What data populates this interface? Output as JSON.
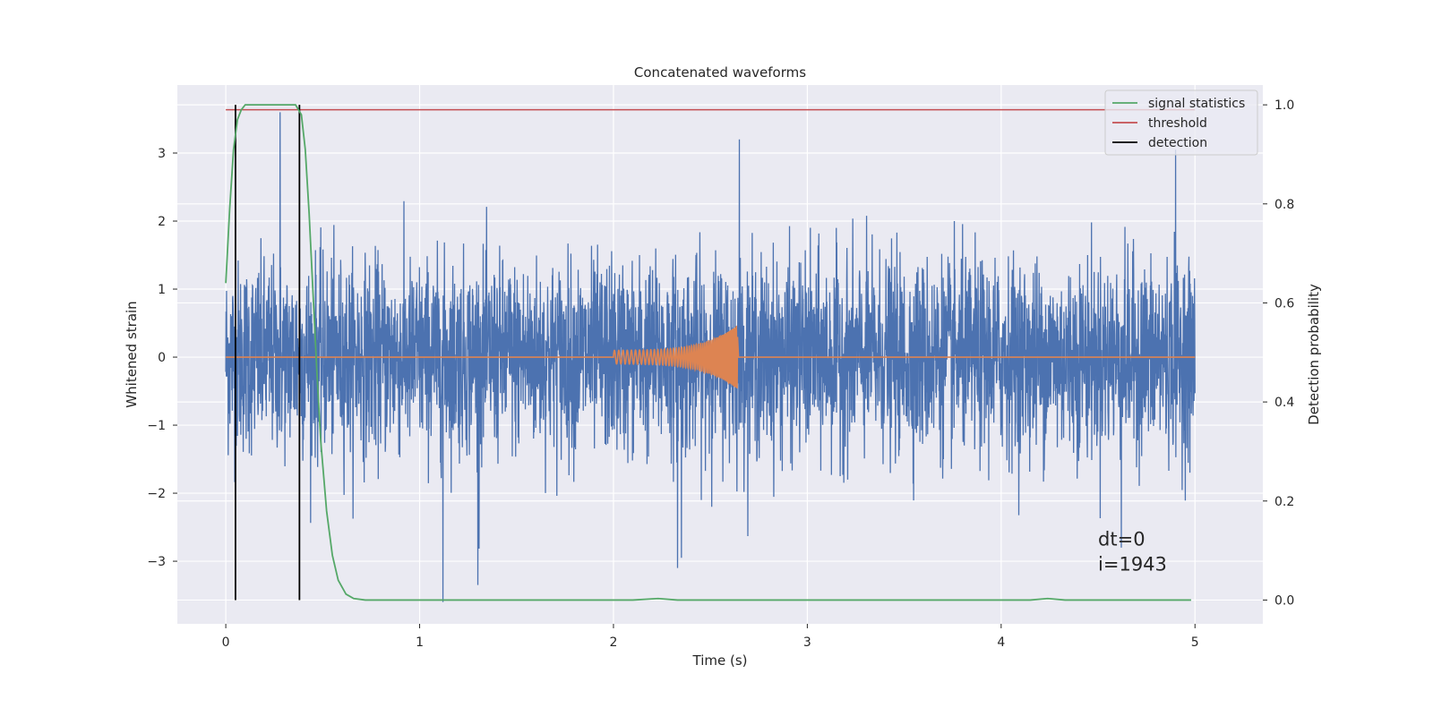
{
  "chart_data": {
    "type": "line",
    "title": "Concatenated waveforms",
    "xlabel": "Time (s)",
    "ylabel_left": "Whitened strain",
    "ylabel_right": "Detection probability",
    "xlim": [
      -0.25,
      5.35
    ],
    "ylim_left": [
      -3.92,
      4.0
    ],
    "ylim_right": [
      -0.048,
      1.04
    ],
    "x_ticks": [
      0,
      1,
      2,
      3,
      4,
      5
    ],
    "x_tick_labels": [
      "0",
      "1",
      "2",
      "3",
      "4",
      "5"
    ],
    "y_left_ticks": [
      -3,
      -2,
      -1,
      0,
      1,
      2,
      3
    ],
    "y_left_tick_labels": [
      "−3",
      "−2",
      "−1",
      "0",
      "1",
      "2",
      "3"
    ],
    "y_right_ticks": [
      0.0,
      0.2,
      0.4,
      0.6,
      0.8,
      1.0
    ],
    "y_right_tick_labels": [
      "0.0",
      "0.2",
      "0.4",
      "0.6",
      "0.8",
      "1.0"
    ],
    "grid": true,
    "legend_position": "top-right",
    "colors": {
      "background": "#eaeaf2",
      "grid": "#ffffff",
      "strain": "#4c72b0",
      "injection": "#dd8452",
      "signal_statistics": "#55a868",
      "threshold": "#c44e52",
      "detection": "#000000"
    },
    "series": [
      {
        "name": "strain",
        "axis": "left",
        "x_range": [
          0,
          5
        ],
        "noise_std": 0.7,
        "extremes": [
          {
            "x": 0.28,
            "y": 3.6
          },
          {
            "x": 1.12,
            "y": -3.6
          },
          {
            "x": 1.3,
            "y": -3.35
          },
          {
            "x": 2.65,
            "y": 3.2
          },
          {
            "x": 2.35,
            "y": -2.95
          },
          {
            "x": 2.33,
            "y": -3.1
          },
          {
            "x": 4.62,
            "y": -2.8
          },
          {
            "x": 4.9,
            "y": 3.05
          }
        ]
      },
      {
        "name": "injection",
        "axis": "left",
        "x_range": [
          0,
          5
        ],
        "chirp": {
          "start": 2.0,
          "end": 2.64,
          "amp_start": 0.1,
          "amp_end": 0.45,
          "f_start": 45,
          "f_end": 140
        }
      },
      {
        "name": "signal statistics",
        "axis": "right",
        "points": [
          [
            0.0,
            0.64
          ],
          [
            0.02,
            0.79
          ],
          [
            0.04,
            0.91
          ],
          [
            0.06,
            0.97
          ],
          [
            0.08,
            0.99
          ],
          [
            0.1,
            1.0
          ],
          [
            0.36,
            1.0
          ],
          [
            0.39,
            0.98
          ],
          [
            0.41,
            0.91
          ],
          [
            0.43,
            0.78
          ],
          [
            0.45,
            0.62
          ],
          [
            0.47,
            0.46
          ],
          [
            0.49,
            0.32
          ],
          [
            0.52,
            0.18
          ],
          [
            0.55,
            0.09
          ],
          [
            0.58,
            0.04
          ],
          [
            0.62,
            0.012
          ],
          [
            0.66,
            0.003
          ],
          [
            0.72,
            0.0
          ],
          [
            2.1,
            0.0
          ],
          [
            2.23,
            0.003
          ],
          [
            2.33,
            0.0
          ],
          [
            4.15,
            0.0
          ],
          [
            4.24,
            0.003
          ],
          [
            4.33,
            0.0
          ],
          [
            4.98,
            0.0
          ]
        ]
      },
      {
        "name": "threshold",
        "axis": "right",
        "points": [
          [
            0.0,
            0.99
          ],
          [
            5.0,
            0.99
          ]
        ]
      },
      {
        "name": "detection",
        "axis": "right",
        "vlines": [
          0.05,
          0.38
        ],
        "ymin": 0.0,
        "ymax": 1.0
      }
    ],
    "legend": [
      "signal statistics",
      "threshold",
      "detection"
    ],
    "annotation": {
      "line1": "dt=0",
      "line2": "i=1943",
      "x": 4.5,
      "y_prob": 0.11
    }
  }
}
